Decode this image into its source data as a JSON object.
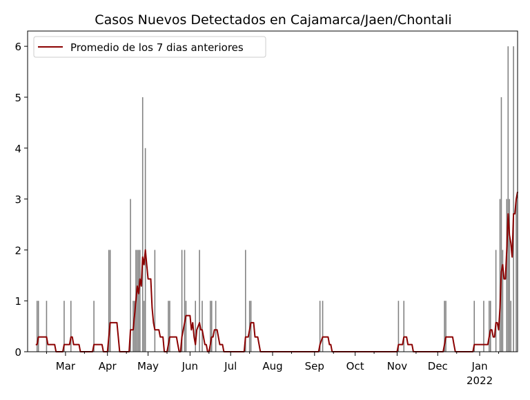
{
  "chart_data": {
    "type": "bar",
    "title": "Casos Nuevos Detectados en Cajamarca/Jaen/Chontali",
    "xlabel": "",
    "ylabel": "",
    "ylim": [
      0,
      6.3
    ],
    "xlim": [
      "2021-02-01",
      "2022-01-29"
    ],
    "yticks": [
      0,
      1,
      2,
      3,
      4,
      5,
      6
    ],
    "xticks": [
      {
        "date": "2021-03-01",
        "label": "Mar"
      },
      {
        "date": "2021-04-01",
        "label": "Apr"
      },
      {
        "date": "2021-05-01",
        "label": "May"
      },
      {
        "date": "2021-06-01",
        "label": "Jun"
      },
      {
        "date": "2021-07-01",
        "label": "Jul"
      },
      {
        "date": "2021-08-01",
        "label": "Aug"
      },
      {
        "date": "2021-09-01",
        "label": "Sep"
      },
      {
        "date": "2021-10-01",
        "label": "Oct"
      },
      {
        "date": "2021-11-01",
        "label": "Nov"
      },
      {
        "date": "2021-12-01",
        "label": "Dec"
      },
      {
        "date": "2022-01-01",
        "label": "Jan",
        "sublabel": "2022"
      }
    ],
    "legend": {
      "location": "upper left",
      "entries": [
        "Promedio de los 7 dias anteriores"
      ]
    },
    "grid": false,
    "bar_color": "#808080",
    "line_color": "#8b0000",
    "bars": [
      [
        "2021-02-08",
        1
      ],
      [
        "2021-02-09",
        1
      ],
      [
        "2021-02-15",
        1
      ],
      [
        "2021-02-28",
        1
      ],
      [
        "2021-03-05",
        1
      ],
      [
        "2021-03-22",
        1
      ],
      [
        "2021-04-02",
        2
      ],
      [
        "2021-04-03",
        2
      ],
      [
        "2021-04-18",
        3
      ],
      [
        "2021-04-20",
        1
      ],
      [
        "2021-04-21",
        1
      ],
      [
        "2021-04-22",
        2
      ],
      [
        "2021-04-23",
        2
      ],
      [
        "2021-04-24",
        2
      ],
      [
        "2021-04-25",
        2
      ],
      [
        "2021-04-27",
        5
      ],
      [
        "2021-04-28",
        1
      ],
      [
        "2021-04-29",
        4
      ],
      [
        "2021-05-06",
        2
      ],
      [
        "2021-05-16",
        1
      ],
      [
        "2021-05-17",
        1
      ],
      [
        "2021-05-26",
        2
      ],
      [
        "2021-05-28",
        2
      ],
      [
        "2021-05-29",
        1
      ],
      [
        "2021-06-05",
        1
      ],
      [
        "2021-06-08",
        2
      ],
      [
        "2021-06-10",
        1
      ],
      [
        "2021-06-16",
        1
      ],
      [
        "2021-06-17",
        1
      ],
      [
        "2021-06-20",
        1
      ],
      [
        "2021-07-12",
        2
      ],
      [
        "2021-07-15",
        1
      ],
      [
        "2021-07-16",
        1
      ],
      [
        "2021-09-05",
        1
      ],
      [
        "2021-09-07",
        1
      ],
      [
        "2021-11-02",
        1
      ],
      [
        "2021-11-06",
        1
      ],
      [
        "2021-12-06",
        1
      ],
      [
        "2021-12-07",
        1
      ],
      [
        "2021-12-28",
        1
      ],
      [
        "2022-01-04",
        1
      ],
      [
        "2022-01-08",
        1
      ],
      [
        "2022-01-09",
        1
      ],
      [
        "2022-01-13",
        2
      ],
      [
        "2022-01-16",
        3
      ],
      [
        "2022-01-17",
        5
      ],
      [
        "2022-01-18",
        2
      ],
      [
        "2022-01-21",
        3
      ],
      [
        "2022-01-22",
        6
      ],
      [
        "2022-01-23",
        3
      ],
      [
        "2022-01-24",
        1
      ],
      [
        "2022-01-26",
        6
      ],
      [
        "2022-01-28",
        3
      ]
    ],
    "series": [
      {
        "name": "Promedio de los 7 dias anteriores",
        "points": [
          [
            "2021-02-07",
            0.14
          ],
          [
            "2021-02-08",
            0.14
          ],
          [
            "2021-02-09",
            0.29
          ],
          [
            "2021-02-15",
            0.29
          ],
          [
            "2021-02-16",
            0.14
          ],
          [
            "2021-02-21",
            0.14
          ],
          [
            "2021-02-22",
            0
          ],
          [
            "2021-02-27",
            0
          ],
          [
            "2021-02-28",
            0.14
          ],
          [
            "2021-03-04",
            0.14
          ],
          [
            "2021-03-05",
            0.29
          ],
          [
            "2021-03-06",
            0.29
          ],
          [
            "2021-03-07",
            0.14
          ],
          [
            "2021-03-11",
            0.14
          ],
          [
            "2021-03-12",
            0
          ],
          [
            "2021-03-21",
            0
          ],
          [
            "2021-03-22",
            0.14
          ],
          [
            "2021-03-28",
            0.14
          ],
          [
            "2021-03-29",
            0
          ],
          [
            "2021-04-01",
            0
          ],
          [
            "2021-04-02",
            0.29
          ],
          [
            "2021-04-03",
            0.57
          ],
          [
            "2021-04-08",
            0.57
          ],
          [
            "2021-04-09",
            0.29
          ],
          [
            "2021-04-10",
            0
          ],
          [
            "2021-04-17",
            0
          ],
          [
            "2021-04-18",
            0.43
          ],
          [
            "2021-04-20",
            0.43
          ],
          [
            "2021-04-21",
            0.71
          ],
          [
            "2021-04-22",
            1.0
          ],
          [
            "2021-04-23",
            1.29
          ],
          [
            "2021-04-24",
            1.14
          ],
          [
            "2021-04-25",
            1.43
          ],
          [
            "2021-04-26",
            1.29
          ],
          [
            "2021-04-27",
            1.86
          ],
          [
            "2021-04-28",
            1.71
          ],
          [
            "2021-04-29",
            2.0
          ],
          [
            "2021-04-30",
            1.71
          ],
          [
            "2021-05-01",
            1.43
          ],
          [
            "2021-05-03",
            1.43
          ],
          [
            "2021-05-04",
            0.86
          ],
          [
            "2021-05-05",
            0.57
          ],
          [
            "2021-05-06",
            0.43
          ],
          [
            "2021-05-09",
            0.43
          ],
          [
            "2021-05-10",
            0.29
          ],
          [
            "2021-05-12",
            0.29
          ],
          [
            "2021-05-13",
            0
          ],
          [
            "2021-05-15",
            0
          ],
          [
            "2021-05-16",
            0.14
          ],
          [
            "2021-05-17",
            0.29
          ],
          [
            "2021-05-22",
            0.29
          ],
          [
            "2021-05-23",
            0.14
          ],
          [
            "2021-05-24",
            0
          ],
          [
            "2021-05-25",
            0
          ],
          [
            "2021-05-26",
            0.29
          ],
          [
            "2021-05-28",
            0.57
          ],
          [
            "2021-05-29",
            0.71
          ],
          [
            "2021-06-01",
            0.71
          ],
          [
            "2021-06-02",
            0.43
          ],
          [
            "2021-06-03",
            0.57
          ],
          [
            "2021-06-04",
            0.29
          ],
          [
            "2021-06-05",
            0.14
          ],
          [
            "2021-06-06",
            0.43
          ],
          [
            "2021-06-08",
            0.57
          ],
          [
            "2021-06-09",
            0.43
          ],
          [
            "2021-06-10",
            0.43
          ],
          [
            "2021-06-12",
            0.14
          ],
          [
            "2021-06-13",
            0.14
          ],
          [
            "2021-06-14",
            0
          ],
          [
            "2021-06-15",
            0
          ],
          [
            "2021-06-16",
            0.14
          ],
          [
            "2021-06-17",
            0.29
          ],
          [
            "2021-06-18",
            0.29
          ],
          [
            "2021-06-19",
            0.43
          ],
          [
            "2021-06-21",
            0.43
          ],
          [
            "2021-06-23",
            0.14
          ],
          [
            "2021-06-25",
            0.14
          ],
          [
            "2021-06-26",
            0
          ],
          [
            "2021-07-11",
            0
          ],
          [
            "2021-07-12",
            0.29
          ],
          [
            "2021-07-14",
            0.29
          ],
          [
            "2021-07-16",
            0.57
          ],
          [
            "2021-07-18",
            0.57
          ],
          [
            "2021-07-19",
            0.29
          ],
          [
            "2021-07-21",
            0.29
          ],
          [
            "2021-07-23",
            0
          ],
          [
            "2021-09-04",
            0
          ],
          [
            "2021-09-05",
            0.14
          ],
          [
            "2021-09-07",
            0.29
          ],
          [
            "2021-09-11",
            0.29
          ],
          [
            "2021-09-12",
            0.14
          ],
          [
            "2021-09-13",
            0.14
          ],
          [
            "2021-09-14",
            0
          ],
          [
            "2021-11-01",
            0
          ],
          [
            "2021-11-02",
            0.14
          ],
          [
            "2021-11-05",
            0.14
          ],
          [
            "2021-11-06",
            0.29
          ],
          [
            "2021-11-08",
            0.29
          ],
          [
            "2021-11-09",
            0.14
          ],
          [
            "2021-11-12",
            0.14
          ],
          [
            "2021-11-13",
            0
          ],
          [
            "2021-12-05",
            0
          ],
          [
            "2021-12-06",
            0.14
          ],
          [
            "2021-12-07",
            0.29
          ],
          [
            "2021-12-12",
            0.29
          ],
          [
            "2021-12-13",
            0.14
          ],
          [
            "2021-12-14",
            0
          ],
          [
            "2021-12-27",
            0
          ],
          [
            "2021-12-28",
            0.14
          ],
          [
            "2022-01-07",
            0.14
          ],
          [
            "2022-01-08",
            0.29
          ],
          [
            "2022-01-09",
            0.43
          ],
          [
            "2022-01-10",
            0.43
          ],
          [
            "2022-01-11",
            0.29
          ],
          [
            "2022-01-12",
            0.29
          ],
          [
            "2022-01-13",
            0.57
          ],
          [
            "2022-01-14",
            0.57
          ],
          [
            "2022-01-15",
            0.43
          ],
          [
            "2022-01-16",
            0.86
          ],
          [
            "2022-01-17",
            1.57
          ],
          [
            "2022-01-18",
            1.71
          ],
          [
            "2022-01-19",
            1.43
          ],
          [
            "2022-01-20",
            1.43
          ],
          [
            "2022-01-21",
            2.0
          ],
          [
            "2022-01-22",
            2.71
          ],
          [
            "2022-01-23",
            2.29
          ],
          [
            "2022-01-24",
            2.14
          ],
          [
            "2022-01-25",
            1.86
          ],
          [
            "2022-01-26",
            2.71
          ],
          [
            "2022-01-27",
            2.71
          ],
          [
            "2022-01-28",
            3.0
          ],
          [
            "2022-01-29",
            3.14
          ]
        ]
      }
    ]
  }
}
